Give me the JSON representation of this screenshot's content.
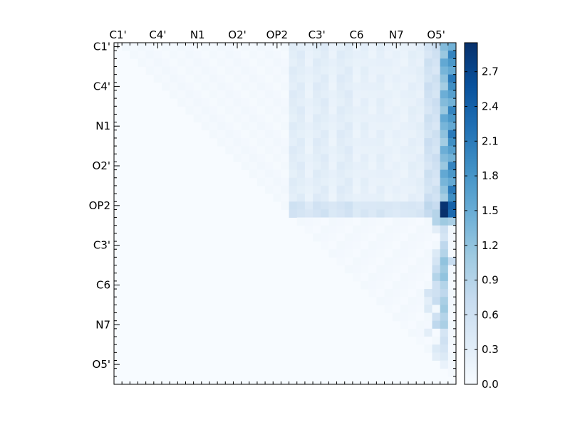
{
  "chart_data": {
    "type": "heatmap",
    "title": "",
    "xlabel": "",
    "ylabel": "",
    "n": 43,
    "x_tick_labels": [
      "C1'",
      "C4'",
      "N1",
      "O2'",
      "OP2",
      "C3'",
      "C6",
      "N7",
      "O5'"
    ],
    "y_tick_labels": [
      "C1'",
      "C4'",
      "N1",
      "O2'",
      "OP2",
      "C3'",
      "C6",
      "N7",
      "O5'"
    ],
    "x_tick_positions": [
      0.5,
      5.5,
      10.5,
      15.5,
      20.5,
      25.5,
      30.5,
      35.5,
      40.5
    ],
    "y_tick_positions": [
      0.5,
      5.5,
      10.5,
      15.5,
      20.5,
      25.5,
      30.5,
      35.5,
      40.5
    ],
    "triangle": "upper",
    "colorbar": {
      "colormap": "Blues",
      "range": [
        0.0,
        2.95
      ],
      "ticks": [
        0.0,
        0.3,
        0.6,
        0.9,
        1.2,
        1.5,
        1.8,
        2.1,
        2.4,
        2.7
      ],
      "tick_labels": [
        "0.0",
        "0.3",
        "0.6",
        "0.9",
        "1.2",
        "1.5",
        "1.8",
        "2.1",
        "2.4",
        "2.7"
      ]
    },
    "background_value": 0.03,
    "column_weights": [
      {
        "columns": [
          22,
          23,
          25,
          26,
          28,
          29
        ],
        "value": 0.35
      },
      {
        "columns": [
          24,
          27,
          30,
          32,
          34,
          35,
          36
        ],
        "value": 0.22
      },
      {
        "columns": [
          31,
          33,
          37,
          38
        ],
        "value": 0.28
      },
      {
        "columns": [
          39,
          40
        ],
        "value": 0.6
      },
      {
        "columns": [
          41
        ],
        "value": 1.4
      },
      {
        "columns": [
          42
        ],
        "value": 1.9
      }
    ],
    "strong_rows": {
      "rows": [
        20,
        21
      ],
      "boost": 0.22,
      "peak_cells": [
        [
          20,
          41,
          2.9
        ],
        [
          21,
          41,
          2.95
        ],
        [
          20,
          42,
          2.4
        ],
        [
          21,
          42,
          2.3
        ]
      ]
    },
    "lower_block": {
      "rows": [
        22,
        30
      ],
      "note": "weak values below OP2 rows",
      "values": [
        [
          22,
          40,
          0.9
        ],
        [
          22,
          41,
          1.1
        ],
        [
          22,
          42,
          1.0
        ],
        [
          23,
          40,
          0.3
        ],
        [
          23,
          41,
          0.6
        ],
        [
          24,
          41,
          0.5
        ],
        [
          25,
          41,
          0.8
        ],
        [
          26,
          40,
          0.4
        ],
        [
          26,
          41,
          0.9
        ],
        [
          27,
          40,
          0.5
        ],
        [
          27,
          41,
          1.2
        ],
        [
          27,
          42,
          0.7
        ],
        [
          28,
          40,
          0.7
        ],
        [
          28,
          41,
          1.1
        ],
        [
          29,
          40,
          0.9
        ],
        [
          29,
          41,
          1.2
        ],
        [
          30,
          40,
          0.6
        ],
        [
          30,
          41,
          0.9
        ]
      ]
    },
    "bottom_block": {
      "values": [
        [
          31,
          39,
          0.5
        ],
        [
          31,
          40,
          0.6
        ],
        [
          31,
          41,
          0.8
        ],
        [
          32,
          39,
          0.3
        ],
        [
          32,
          40,
          0.7
        ],
        [
          32,
          41,
          1.0
        ],
        [
          33,
          39,
          0.4
        ],
        [
          33,
          41,
          1.1
        ],
        [
          34,
          40,
          0.6
        ],
        [
          34,
          41,
          0.9
        ],
        [
          35,
          40,
          0.8
        ],
        [
          35,
          41,
          1.0
        ],
        [
          36,
          39,
          0.3
        ],
        [
          36,
          41,
          0.5
        ],
        [
          37,
          41,
          0.6
        ],
        [
          38,
          40,
          0.4
        ],
        [
          38,
          41,
          0.5
        ],
        [
          39,
          40,
          0.3
        ],
        [
          39,
          41,
          0.4
        ],
        [
          40,
          41,
          0.2
        ]
      ]
    }
  }
}
